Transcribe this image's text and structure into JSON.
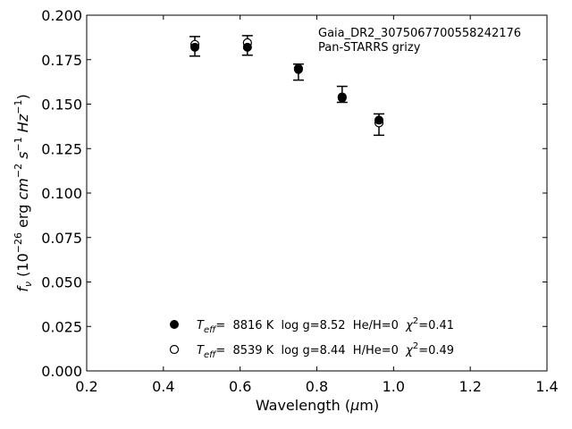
{
  "chart_data": {
    "type": "scatter",
    "annotation": [
      "Gaia_DR2_3075067700558242176",
      "Pan-STARRS grizy"
    ],
    "xlabel": "Wavelength (μm)",
    "ylabel": "f_ν (10^-26 erg cm^-2 s^-1 Hz^-1)",
    "xlim": [
      0.2,
      1.4
    ],
    "ylim": [
      0.0,
      0.2
    ],
    "xticks": [
      "0.2",
      "0.4",
      "0.6",
      "0.8",
      "1.0",
      "1.2",
      "1.4"
    ],
    "yticks": [
      "0.000",
      "0.025",
      "0.050",
      "0.075",
      "0.100",
      "0.125",
      "0.150",
      "0.175",
      "0.200"
    ],
    "grid": false,
    "legend_position": "bottom-center",
    "observed": {
      "x": [
        0.482,
        0.619,
        0.752,
        0.866,
        0.962
      ],
      "y": [
        0.1825,
        0.183,
        0.168,
        0.1555,
        0.1385
      ],
      "yerr": [
        0.0055,
        0.0055,
        0.0045,
        0.0045,
        0.006
      ]
    },
    "series": [
      {
        "legend": "T_eff= 8816 K log g=8.52 He/H=0 χ²=0.41",
        "marker": "filled-circle",
        "x": [
          0.482,
          0.619,
          0.752,
          0.866,
          0.962
        ],
        "y": [
          0.182,
          0.182,
          0.1695,
          0.1535,
          0.141
        ]
      },
      {
        "legend": "T_eff= 8539 K log g=8.44 H/He=0 χ²=0.49",
        "marker": "open-circle",
        "x": [
          0.482,
          0.619,
          0.752,
          0.866,
          0.962
        ],
        "y": [
          0.1835,
          0.1845,
          0.17,
          0.154,
          0.1395
        ]
      }
    ],
    "legend_entries": [
      {
        "teff_label": "T",
        "teff_sub": "eff",
        "value": "=  8816 K  log g=8.52  He/H=0  ",
        "chi": "χ",
        "chi_sup": "2",
        "chi_value": "=0.41"
      },
      {
        "teff_label": "T",
        "teff_sub": "eff",
        "value": "=  8539 K  log g=8.44  H/He=0  ",
        "chi": "χ",
        "chi_sup": "2",
        "chi_value": "=0.49"
      }
    ],
    "xlabel_parts": {
      "text": "Wavelength (",
      "mu": "μ",
      "unit": "m)"
    },
    "ylabel_parts": {
      "f": "f",
      "nu": "ν",
      "open": " (10",
      "exp1": "−26",
      "erg": " erg ",
      "cm": "cm",
      "exp2": "−2",
      "s": " s",
      "exp3": "−1",
      "hz": " Hz",
      "exp4": "−1",
      "close": ")"
    }
  }
}
